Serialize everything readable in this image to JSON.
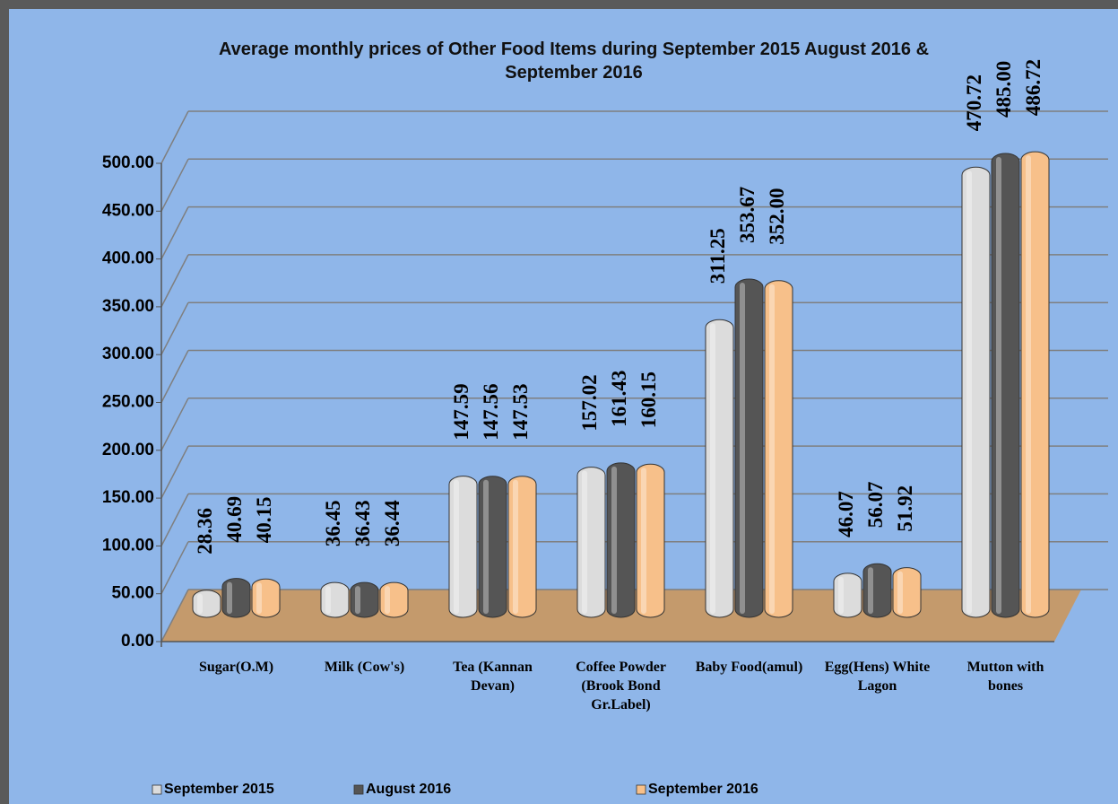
{
  "chart_data": {
    "type": "bar",
    "title": "Average monthly prices of Other Food Items during September 2015 August 2016 &  September 2016",
    "categories": [
      "Sugar(O.M)",
      "Milk  (Cow's)",
      "Tea (Kannan Devan)",
      "Coffee Powder (Brook Bond Gr.Label)",
      "Baby Food(amul)",
      "Egg(Hens) White Lagon",
      "Mutton with bones"
    ],
    "series": [
      {
        "name": "September 2015",
        "color": "#dcdcdc",
        "values": [
          28.36,
          36.45,
          147.59,
          157.02,
          311.25,
          46.07,
          470.72
        ],
        "value_labels": [
          "28.36",
          "36.45",
          "147.59",
          "157.02",
          "311.25",
          "46.07",
          "470.72"
        ]
      },
      {
        "name": "August 2016",
        "color": "#555555",
        "values": [
          40.69,
          36.43,
          147.56,
          161.43,
          353.67,
          56.07,
          485.0
        ],
        "value_labels": [
          "40.69",
          "36.43",
          "147.56",
          "161.43",
          "353.67",
          "56.07",
          "485.00"
        ]
      },
      {
        "name": "September 2016",
        "color": "#f7c08a",
        "values": [
          40.15,
          36.44,
          147.53,
          160.15,
          352.0,
          51.92,
          486.72
        ],
        "value_labels": [
          "40.15",
          "36.44",
          "147.53",
          "160.15",
          "352.00",
          "51.92",
          "486.72"
        ]
      }
    ],
    "ylim": [
      0,
      500
    ],
    "yticks": [
      {
        "value": 0,
        "label": "0.00"
      },
      {
        "value": 50,
        "label": "50.00"
      },
      {
        "value": 100,
        "label": "100.00"
      },
      {
        "value": 150,
        "label": "150.00"
      },
      {
        "value": 200,
        "label": "200.00"
      },
      {
        "value": 250,
        "label": "250.00"
      },
      {
        "value": 300,
        "label": "300.00"
      },
      {
        "value": 350,
        "label": "350.00"
      },
      {
        "value": 400,
        "label": "400.00"
      },
      {
        "value": 450,
        "label": "450.00"
      },
      {
        "value": 500,
        "label": "500.00"
      }
    ],
    "grid": true,
    "legend": "bottom"
  }
}
